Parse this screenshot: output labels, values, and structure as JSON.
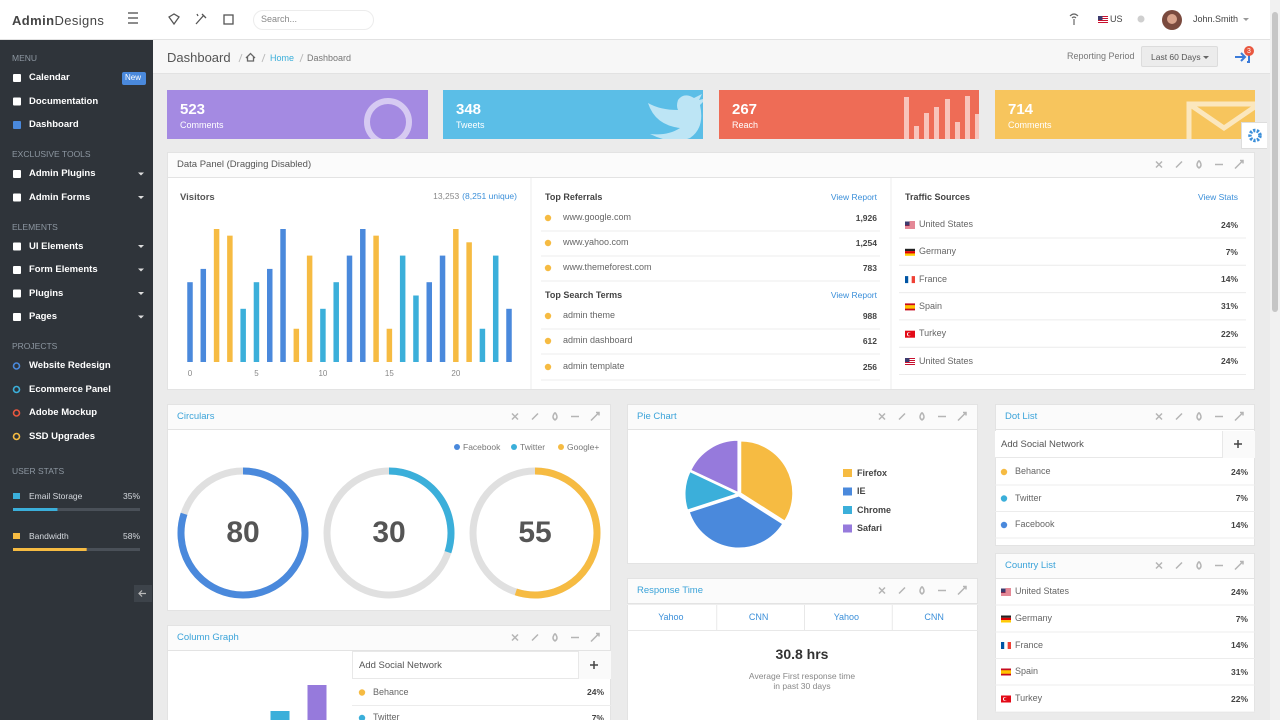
{
  "header": {
    "logo_bold": "Admin",
    "logo_light": "Designs",
    "search_placeholder": "Search...",
    "language": "US",
    "user": "John.Smith"
  },
  "sidebar": {
    "sections": [
      {
        "title": "MENU",
        "items": [
          {
            "label": "Calendar",
            "badge": "New"
          },
          {
            "label": "Documentation"
          },
          {
            "label": "Dashboard"
          }
        ]
      },
      {
        "title": "EXCLUSIVE TOOLS",
        "items": [
          {
            "label": "Admin Plugins",
            "dropdown": true
          },
          {
            "label": "Admin Forms",
            "dropdown": true
          }
        ]
      },
      {
        "title": "ELEMENTS",
        "items": [
          {
            "label": "UI Elements",
            "dropdown": true
          },
          {
            "label": "Form Elements",
            "dropdown": true
          },
          {
            "label": "Plugins",
            "dropdown": true
          },
          {
            "label": "Pages",
            "dropdown": true
          }
        ]
      },
      {
        "title": "PROJECTS",
        "items": [
          {
            "label": "Website Redesign",
            "color": "#4a89dc"
          },
          {
            "label": "Ecommerce Panel",
            "color": "#3bafda"
          },
          {
            "label": "Adobe Mockup",
            "color": "#e9573f"
          },
          {
            "label": "SSD Upgrades",
            "color": "#f6bb42"
          }
        ]
      }
    ],
    "user_stats": {
      "title": "USER STATS",
      "items": [
        {
          "label": "Email Storage",
          "value": 35,
          "value_label": "35%",
          "color": "#3bafda"
        },
        {
          "label": "Bandwidth",
          "value": 58,
          "value_label": "58%",
          "color": "#f6bb42"
        }
      ]
    }
  },
  "breadcrumb": {
    "title": "Dashboard",
    "home": "Home",
    "current": "Dashboard",
    "period_label": "Reporting Period",
    "period": "Last 60 Days",
    "notifications": 3
  },
  "tiles": [
    {
      "value": 523,
      "label": "Comments",
      "color": "#a48ae2"
    },
    {
      "value": 348,
      "label": "Tweets",
      "color": "#5bbee7"
    },
    {
      "value": 267,
      "label": "Reach",
      "color": "#ee6c56"
    },
    {
      "value": 714,
      "label": "Comments",
      "color": "#f7c55d"
    }
  ],
  "data_panel": {
    "title": "Data Panel (Dragging Disabled)",
    "referrals": {
      "title": "Top Referrals",
      "link": "View Report",
      "rows": [
        {
          "name": "www.google.com",
          "value": "1,926"
        },
        {
          "name": "www.yahoo.com",
          "value": "1,254"
        },
        {
          "name": "www.themeforest.com",
          "value": "783"
        }
      ]
    },
    "search_terms": {
      "title": "Top Search Terms",
      "link": "View Report",
      "rows": [
        {
          "name": "admin theme",
          "value": "988"
        },
        {
          "name": "admin dashboard",
          "value": "612"
        },
        {
          "name": "admin template",
          "value": "256"
        }
      ]
    },
    "traffic": {
      "title": "Traffic Sources",
      "link": "View Stats",
      "rows": [
        {
          "name": "United States",
          "value": "24%"
        },
        {
          "name": "Germany",
          "value": "7%"
        },
        {
          "name": "France",
          "value": "14%"
        },
        {
          "name": "Spain",
          "value": "31%"
        },
        {
          "name": "Turkey",
          "value": "22%"
        },
        {
          "name": "United States",
          "value": "24%"
        }
      ]
    }
  },
  "chart_data": [
    {
      "type": "bar",
      "title": "Visitors",
      "total": "13,253",
      "unique": "(8,251 unique)",
      "x": [
        0,
        1,
        2,
        3,
        4,
        5,
        6,
        7,
        8,
        9,
        10,
        11,
        12,
        13,
        14,
        15,
        16,
        17,
        18,
        19,
        20,
        21,
        22,
        23,
        24
      ],
      "values": [
        6,
        7,
        10,
        9.5,
        4,
        6,
        7,
        10,
        2.5,
        8,
        4,
        6,
        8,
        10,
        9.5,
        2.5,
        8,
        5,
        6,
        8,
        10,
        9,
        2.5,
        8,
        4
      ],
      "colors": [
        "#4a89dc",
        "#4a89dc",
        "#f6bb42",
        "#f6bb42",
        "#3bafda",
        "#3bafda",
        "#4a89dc",
        "#4a89dc",
        "#f6bb42",
        "#f6bb42",
        "#3bafda",
        "#3bafda",
        "#4a89dc",
        "#4a89dc",
        "#f6bb42",
        "#f6bb42",
        "#3bafda",
        "#3bafda",
        "#4a89dc",
        "#4a89dc",
        "#f6bb42",
        "#f6bb42",
        "#3bafda",
        "#3bafda",
        "#4a89dc"
      ],
      "xlim": [
        0,
        24
      ],
      "xticks": [
        0,
        5,
        10,
        15,
        20
      ],
      "ylim": [
        0,
        10
      ]
    },
    {
      "type": "gauge",
      "title": "Circulars",
      "categories": [
        "Facebook",
        "Twitter",
        "Google+"
      ],
      "values": [
        80,
        30,
        55
      ],
      "colors": [
        "#4a89dc",
        "#3bafda",
        "#f6bb42"
      ],
      "ylim": [
        0,
        100
      ]
    },
    {
      "type": "pie",
      "title": "Pie Chart",
      "categories": [
        "Firefox",
        "IE",
        "Chrome",
        "Safari"
      ],
      "values": [
        34,
        36,
        12,
        18
      ],
      "colors": [
        "#f6bb42",
        "#4a89dc",
        "#3bafda",
        "#967adc"
      ]
    },
    {
      "type": "bar",
      "title": "Column Graph",
      "categories": [
        null,
        null
      ],
      "values": [
        9,
        35
      ],
      "colors": [
        "#3bafda",
        "#967adc"
      ],
      "ylim": [
        0,
        60
      ]
    }
  ],
  "dot_list": {
    "title": "Dot List",
    "add_label": "Add Social Network",
    "rows": [
      {
        "name": "Behance",
        "value": "24%"
      },
      {
        "name": "Twitter",
        "value": "7%"
      },
      {
        "name": "Facebook",
        "value": "14%"
      }
    ]
  },
  "country_list": {
    "title": "Country List",
    "rows": [
      {
        "name": "United States",
        "value": "24%"
      },
      {
        "name": "Germany",
        "value": "7%"
      },
      {
        "name": "France",
        "value": "14%"
      },
      {
        "name": "Spain",
        "value": "31%"
      },
      {
        "name": "Turkey",
        "value": "22%"
      }
    ]
  },
  "response_time": {
    "title": "Response Time",
    "tabs": [
      "Yahoo",
      "CNN",
      "Yahoo",
      "CNN"
    ],
    "value": "30.8 hrs",
    "caption": [
      "Average First response time",
      "in past 30 days"
    ]
  },
  "column_list": {
    "add_label": "Add Social Network",
    "rows": [
      {
        "name": "Behance",
        "value": "24%"
      },
      {
        "name": "Twitter",
        "value": "7%"
      }
    ]
  }
}
